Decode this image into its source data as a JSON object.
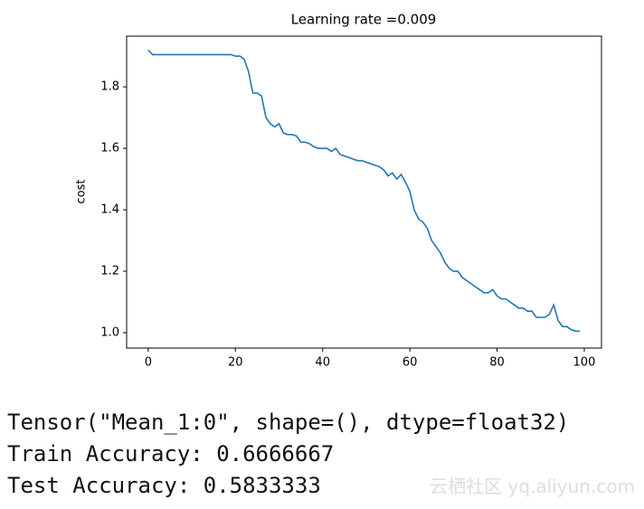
{
  "chart_data": {
    "type": "line",
    "title": "Learning rate =0.009",
    "y_label": "cost",
    "x": [
      0,
      1,
      2,
      3,
      4,
      5,
      6,
      7,
      8,
      9,
      10,
      11,
      12,
      13,
      14,
      15,
      16,
      17,
      18,
      19,
      20,
      21,
      22,
      23,
      24,
      25,
      26,
      27,
      28,
      29,
      30,
      31,
      32,
      33,
      34,
      35,
      36,
      37,
      38,
      39,
      40,
      41,
      42,
      43,
      44,
      45,
      46,
      47,
      48,
      49,
      50,
      51,
      52,
      53,
      54,
      55,
      56,
      57,
      58,
      59,
      60,
      61,
      62,
      63,
      64,
      65,
      66,
      67,
      68,
      69,
      70,
      71,
      72,
      73,
      74,
      75,
      76,
      77,
      78,
      79,
      80,
      81,
      82,
      83,
      84,
      85,
      86,
      87,
      88,
      89,
      90,
      91,
      92,
      93,
      94,
      95,
      96,
      97,
      98,
      99
    ],
    "series": [
      {
        "color": "#1f77b4",
        "values": [
          1.92,
          1.905,
          1.905,
          1.905,
          1.905,
          1.905,
          1.905,
          1.905,
          1.905,
          1.905,
          1.905,
          1.905,
          1.905,
          1.905,
          1.905,
          1.905,
          1.905,
          1.905,
          1.905,
          1.905,
          1.9,
          1.9,
          1.89,
          1.85,
          1.78,
          1.78,
          1.77,
          1.7,
          1.68,
          1.67,
          1.68,
          1.65,
          1.645,
          1.645,
          1.64,
          1.62,
          1.62,
          1.615,
          1.605,
          1.6,
          1.6,
          1.6,
          1.59,
          1.6,
          1.58,
          1.575,
          1.57,
          1.565,
          1.56,
          1.56,
          1.555,
          1.55,
          1.545,
          1.54,
          1.53,
          1.51,
          1.52,
          1.5,
          1.515,
          1.49,
          1.46,
          1.4,
          1.37,
          1.36,
          1.34,
          1.3,
          1.28,
          1.26,
          1.23,
          1.21,
          1.2,
          1.2,
          1.18,
          1.17,
          1.16,
          1.15,
          1.14,
          1.13,
          1.13,
          1.14,
          1.12,
          1.11,
          1.11,
          1.1,
          1.09,
          1.08,
          1.08,
          1.07,
          1.07,
          1.05,
          1.05,
          1.05,
          1.06,
          1.09,
          1.04,
          1.02,
          1.02,
          1.01,
          1.005,
          1.005
        ]
      }
    ],
    "xlim": [
      -4.95,
      103.95
    ],
    "xticks": [
      0,
      20,
      40,
      60,
      80,
      100
    ],
    "ylim": [
      0.95,
      1.965
    ],
    "yticks": [
      {
        "value": 1,
        "label": "1.0"
      },
      1.2,
      1.4,
      1.6,
      1.8
    ],
    "grid": false
  },
  "output": [
    "Tensor(\"Mean_1:0\", shape=(), dtype=float32)",
    "Train Accuracy: 0.6666667",
    "Test Accuracy: 0.5833333"
  ],
  "watermark": "云栖社区 yq.aliyun.com"
}
